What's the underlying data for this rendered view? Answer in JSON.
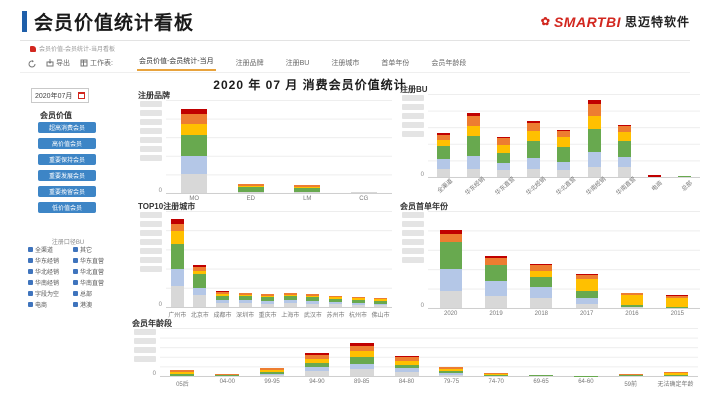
{
  "header": {
    "title": "会员价值统计看板",
    "logo_main": "SMARTBI",
    "logo_suffix": "思迈特软件"
  },
  "breadcrumb": {
    "text": "会员价值-会员统计-当月看板"
  },
  "toolbar": {
    "refresh_label": "",
    "export_label": "导出",
    "worksheet_label": "工作表:",
    "tabs": [
      {
        "label": "会员价值-会员统计-当月",
        "active": true
      },
      {
        "label": "注册品牌",
        "active": false
      },
      {
        "label": "注册BU",
        "active": false
      },
      {
        "label": "注册城市",
        "active": false
      },
      {
        "label": "首单年份",
        "active": false
      },
      {
        "label": "会员年龄段",
        "active": false
      }
    ]
  },
  "sidebar": {
    "date_value": "2020年07月",
    "member_value_label": "会员价值",
    "value_buttons": [
      "超高消费会员",
      "高价值会员",
      "重要保持会员",
      "重要发展会员",
      "重要挽留会员",
      "低价值会员"
    ],
    "bu_filter_label": "注册口径BU",
    "bu_options_left": [
      "全渠道",
      "华东经销",
      "华北经销",
      "华南经销",
      "字段为空",
      "电商"
    ],
    "bu_options_right": [
      "其它",
      "华东直营",
      "华北直营",
      "华南直营",
      "总部",
      "港澳"
    ]
  },
  "main": {
    "title": "2020 年 07 月 消费会员价值统计"
  },
  "colors": {
    "segments": {
      "gray": "#d8d8d8",
      "blue": "#b4c7e7",
      "green": "#68a94f",
      "yellow": "#ffc000",
      "orange": "#ed7d31",
      "red": "#c00000"
    },
    "accent_blue": "#3d85c6",
    "tab_active_underline": "#e8a33d",
    "header_bar": "#1f5fa9",
    "logo_red": "#d2271f"
  },
  "chart_data": [
    {
      "id": "brand",
      "type": "bar",
      "stacked": true,
      "title": "注册品牌",
      "y_axis_redacted": true,
      "y_min_label": "0",
      "ylim_percent": [
        0,
        100
      ],
      "grid": true,
      "legend": "none",
      "categories": [
        "MO",
        "ED",
        "LM",
        "CG"
      ],
      "series": [
        {
          "name": "segment-gray",
          "color": "gray",
          "values": [
            20,
            1,
            1,
            0.6
          ]
        },
        {
          "name": "segment-blue",
          "color": "blue",
          "values": [
            20,
            0,
            0,
            0
          ]
        },
        {
          "name": "segment-green",
          "color": "green",
          "values": [
            22,
            5,
            4,
            0.6
          ]
        },
        {
          "name": "segment-yellow",
          "color": "yellow",
          "values": [
            12,
            2,
            2,
            0
          ]
        },
        {
          "name": "segment-orange",
          "color": "orange",
          "values": [
            11,
            2,
            2,
            0
          ]
        },
        {
          "name": "segment-red",
          "color": "red",
          "values": [
            5,
            0,
            0,
            0
          ]
        }
      ]
    },
    {
      "id": "bu",
      "type": "bar",
      "stacked": true,
      "title": "注册BU",
      "y_axis_redacted": true,
      "y_min_label": "0",
      "ylim_percent": [
        0,
        100
      ],
      "grid": true,
      "legend": "none",
      "x_label_rotation": 45,
      "categories": [
        "全渠道",
        "华东经销",
        "华东直营",
        "华北经销",
        "华北直营",
        "华南经销",
        "华南直营",
        "电商",
        "总部"
      ],
      "series": [
        {
          "name": "segment-gray",
          "color": "gray",
          "values": [
            10,
            10,
            9,
            10,
            8,
            12,
            12,
            0.5,
            0.4
          ]
        },
        {
          "name": "segment-blue",
          "color": "blue",
          "values": [
            12,
            15,
            8,
            13,
            10,
            18,
            12,
            0,
            0
          ]
        },
        {
          "name": "segment-green",
          "color": "green",
          "values": [
            15,
            25,
            12,
            20,
            18,
            28,
            20,
            0,
            0.3
          ]
        },
        {
          "name": "segment-yellow",
          "color": "yellow",
          "values": [
            8,
            12,
            10,
            12,
            12,
            15,
            10,
            0,
            0
          ]
        },
        {
          "name": "segment-orange",
          "color": "orange",
          "values": [
            6,
            12,
            8,
            10,
            8,
            15,
            8,
            0,
            0
          ]
        },
        {
          "name": "segment-red",
          "color": "red",
          "values": [
            2,
            3,
            1,
            2,
            1,
            5,
            1,
            1.5,
            0
          ]
        }
      ]
    },
    {
      "id": "city",
      "type": "bar",
      "stacked": true,
      "title": "TOP10注册城市",
      "y_axis_redacted": true,
      "y_min_label": "0",
      "ylim_percent": [
        0,
        100
      ],
      "grid": true,
      "legend": "none",
      "categories": [
        "广州市",
        "北京市",
        "成都市",
        "深圳市",
        "重庆市",
        "上海市",
        "武汉市",
        "苏州市",
        "杭州市",
        "佛山市"
      ],
      "series": [
        {
          "name": "segment-gray",
          "color": "gray",
          "values": [
            22,
            12,
            4,
            4,
            3.5,
            4,
            3.5,
            3,
            2.5,
            2
          ]
        },
        {
          "name": "segment-blue",
          "color": "blue",
          "values": [
            18,
            8,
            3,
            3,
            2.5,
            3,
            2.5,
            2,
            2,
            1.5
          ]
        },
        {
          "name": "segment-green",
          "color": "green",
          "values": [
            26,
            14,
            5,
            4,
            4,
            4,
            4,
            3.5,
            3,
            3
          ]
        },
        {
          "name": "segment-yellow",
          "color": "yellow",
          "values": [
            13,
            4,
            2,
            2,
            2,
            2,
            2,
            2,
            1.5,
            1.5
          ]
        },
        {
          "name": "segment-orange",
          "color": "orange",
          "values": [
            8,
            4,
            2,
            1.5,
            1.5,
            1.5,
            1.5,
            1.5,
            1,
            1
          ]
        },
        {
          "name": "segment-red",
          "color": "red",
          "values": [
            5,
            2,
            1,
            0.5,
            0.5,
            0.5,
            0.5,
            0,
            0,
            0
          ]
        }
      ]
    },
    {
      "id": "first-order-year",
      "type": "bar",
      "stacked": true,
      "title": "会员首单年份",
      "y_axis_redacted": true,
      "y_min_label": "0",
      "ylim_percent": [
        0,
        100
      ],
      "grid": true,
      "legend": "none",
      "categories": [
        "2020",
        "2019",
        "2018",
        "2017",
        "2016",
        "2015"
      ],
      "series": [
        {
          "name": "segment-gray",
          "color": "gray",
          "values": [
            18,
            12,
            10,
            4,
            1,
            0
          ]
        },
        {
          "name": "segment-blue",
          "color": "blue",
          "values": [
            22,
            16,
            12,
            6,
            0,
            0
          ]
        },
        {
          "name": "segment-green",
          "color": "green",
          "values": [
            28,
            16,
            10,
            8,
            2,
            1
          ]
        },
        {
          "name": "segment-yellow",
          "color": "yellow",
          "values": [
            0,
            0,
            6,
            12,
            10,
            9
          ]
        },
        {
          "name": "segment-orange",
          "color": "orange",
          "values": [
            8,
            8,
            6,
            4,
            2,
            2
          ]
        },
        {
          "name": "segment-red",
          "color": "red",
          "values": [
            4,
            2,
            1,
            1,
            1,
            1
          ]
        }
      ]
    },
    {
      "id": "age-band",
      "type": "bar",
      "stacked": true,
      "title": "会员年龄段",
      "y_axis_redacted": true,
      "y_min_label": "0",
      "ylim_percent": [
        0,
        100
      ],
      "grid": true,
      "legend": "none",
      "categories": [
        "05后",
        "04-00",
        "99-95",
        "94-90",
        "89-85",
        "84-80",
        "79-75",
        "74-70",
        "69-65",
        "64-60",
        "59前",
        "无法确定年龄"
      ],
      "series": [
        {
          "name": "segment-gray",
          "color": "gray",
          "values": [
            1,
            0.5,
            2,
            10,
            14,
            8,
            3,
            1,
            0.5,
            0,
            0.5,
            1
          ]
        },
        {
          "name": "segment-blue",
          "color": "blue",
          "values": [
            0,
            0,
            2,
            8,
            12,
            8,
            3,
            0,
            0,
            0,
            0,
            0
          ]
        },
        {
          "name": "segment-green",
          "color": "green",
          "values": [
            3,
            1,
            5,
            10,
            14,
            8,
            4,
            2,
            1,
            0.5,
            1,
            2
          ]
        },
        {
          "name": "segment-yellow",
          "color": "yellow",
          "values": [
            4,
            1,
            3,
            8,
            12,
            8,
            4,
            2,
            1,
            0.5,
            1,
            2.5
          ]
        },
        {
          "name": "segment-orange",
          "color": "orange",
          "values": [
            4,
            1.5,
            4,
            8,
            10,
            8,
            4,
            2,
            0.5,
            0,
            1.5,
            2.5
          ]
        },
        {
          "name": "segment-red",
          "color": "red",
          "values": [
            0,
            0,
            0,
            4,
            6,
            2,
            0,
            0,
            0,
            0,
            0,
            0
          ]
        }
      ]
    }
  ]
}
